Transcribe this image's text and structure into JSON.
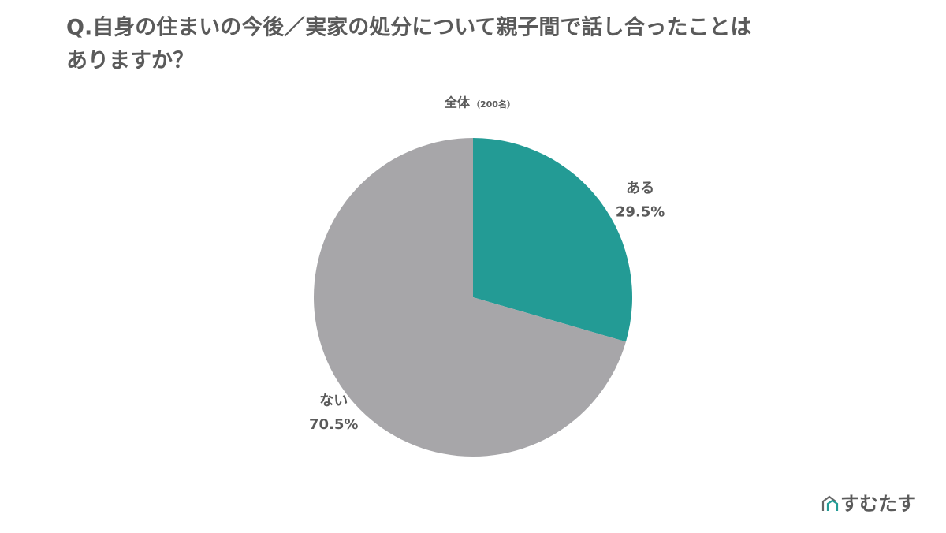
{
  "chart_data": {
    "type": "pie",
    "title": [
      "Q.自身の住まいの今後／実家の処分について親子間で話し合ったことは",
      "ありますか？"
    ],
    "subtitle": "全体",
    "subtitle_note": "（200名）",
    "categories": [
      "ある",
      "ない"
    ],
    "values": [
      29.5,
      70.5
    ],
    "value_labels": [
      "29.5%",
      "70.5%"
    ],
    "colors": [
      "#239b95",
      "#a7a6a9"
    ]
  },
  "logo": "すむたす"
}
